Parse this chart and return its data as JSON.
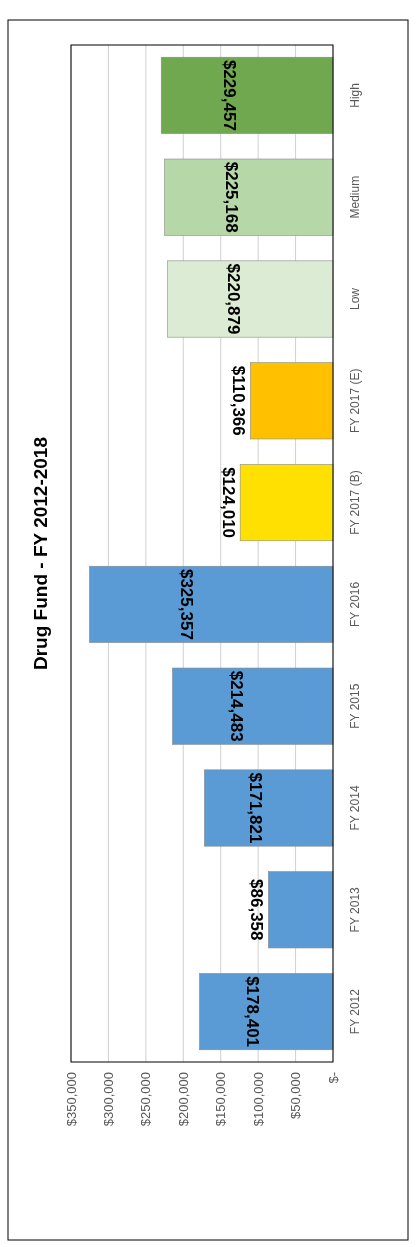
{
  "chart_data": {
    "type": "bar",
    "orientation": "horizontal",
    "title": "Drug Fund - FY 2012-2018",
    "categories": [
      "High",
      "Medium",
      "Low",
      "FY 2017 (E)",
      "FY 2017 (B)",
      "FY 2016",
      "FY 2015",
      "FY 2014",
      "FY 2013",
      "FY 2012"
    ],
    "values": [
      229457,
      225168,
      220879,
      110366,
      124010,
      325357,
      214483,
      171821,
      86358,
      178401
    ],
    "colors": [
      "#70a84f",
      "#b6d7a8",
      "#dcebd3",
      "#ffc000",
      "#ffe000",
      "#5b9bd5",
      "#5b9bd5",
      "#5b9bd5",
      "#5b9bd5",
      "#5b9bd5"
    ],
    "value_labels": [
      "$229,457",
      "$225,168",
      "$220,879",
      "$110,366",
      "$124,010",
      "$325,357",
      "$214,483",
      "$171,821",
      "$86,358",
      "$178,401"
    ],
    "xlim": [
      350000,
      0
    ],
    "xticks": [
      {
        "value": 0,
        "label": "$-"
      },
      {
        "value": 50000,
        "label": "$50,000"
      },
      {
        "value": 100000,
        "label": "$100,000"
      },
      {
        "value": 150000,
        "label": "$150,000"
      },
      {
        "value": 200000,
        "label": "$200,000"
      },
      {
        "value": 250000,
        "label": "$250,000"
      },
      {
        "value": 300000,
        "label": "$300,000"
      },
      {
        "value": 350000,
        "label": "$350,000"
      }
    ],
    "grid": "x"
  }
}
